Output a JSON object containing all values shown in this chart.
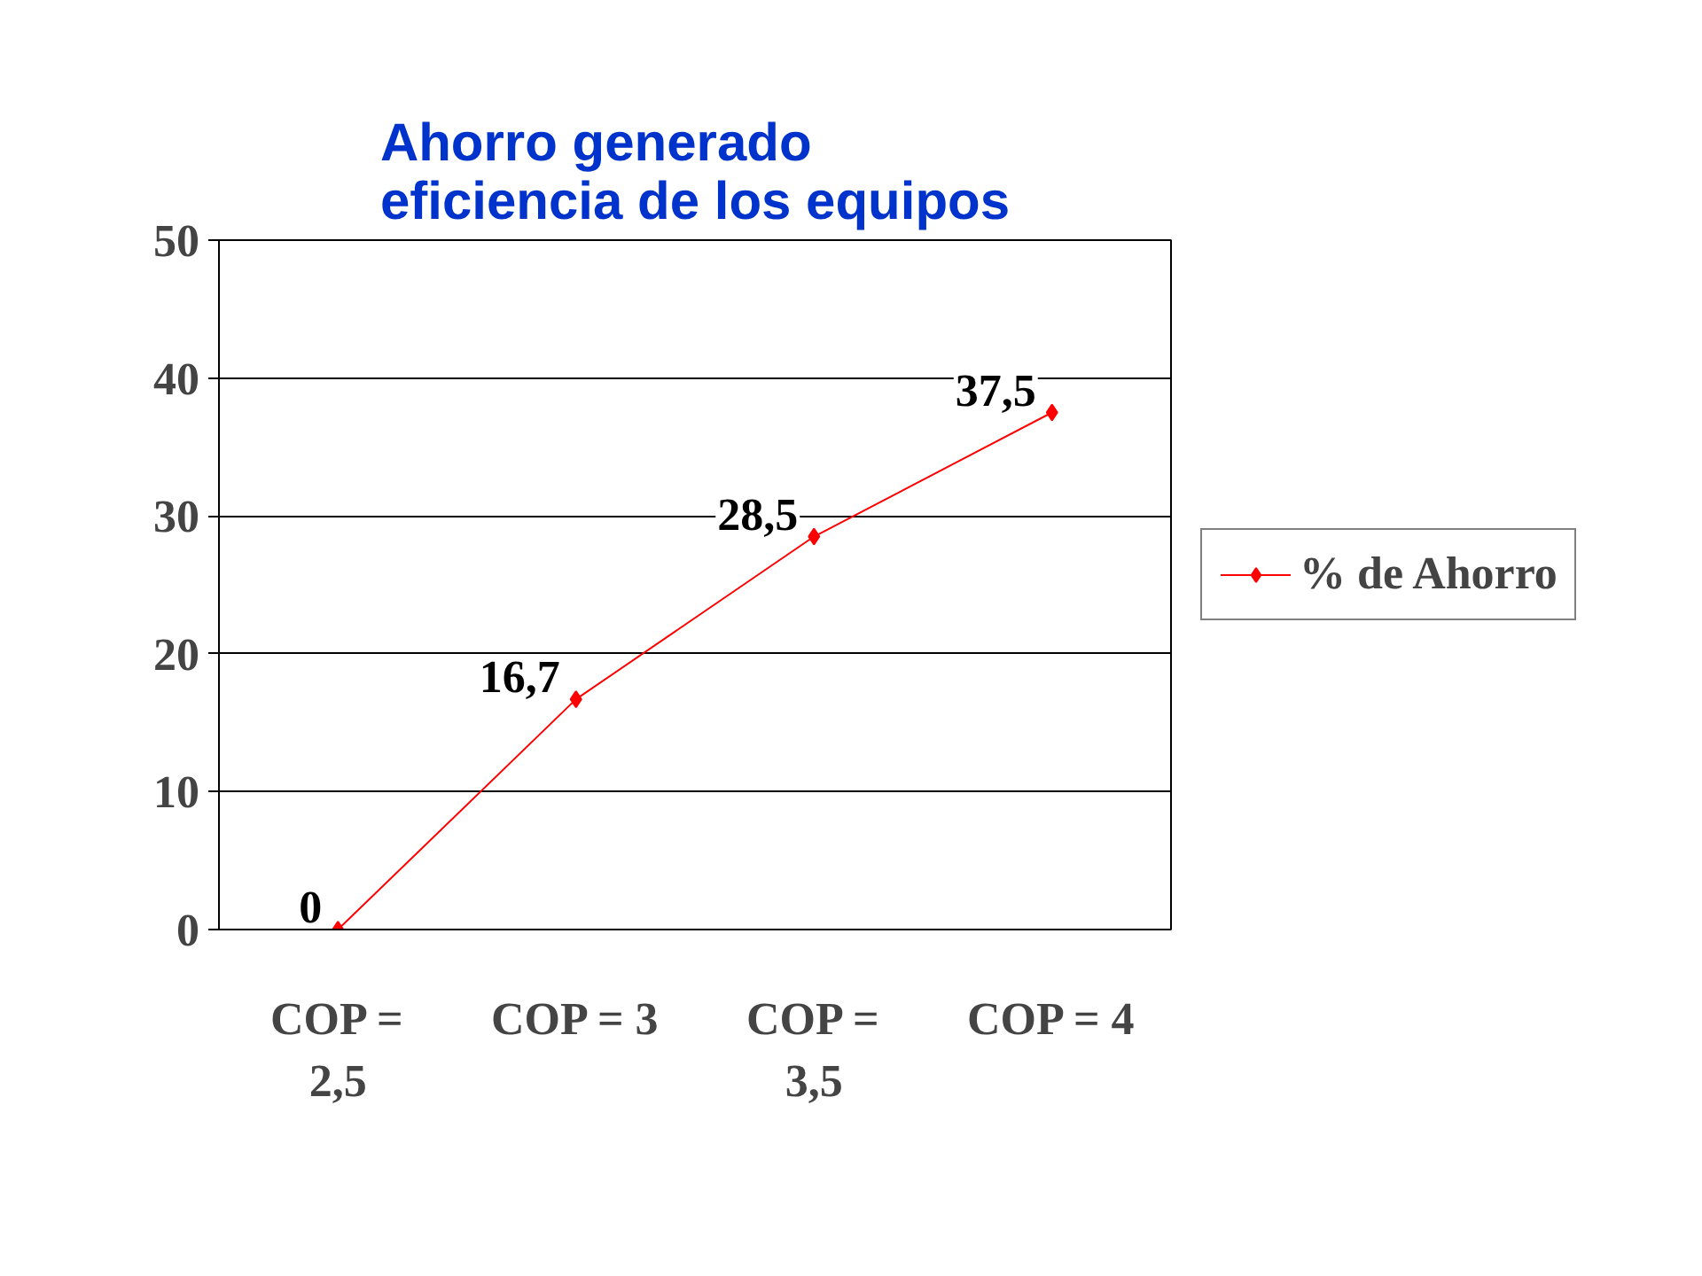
{
  "chart_data": {
    "type": "line",
    "title": "Ahorro generado\neficiencia de los equipos",
    "categories": [
      "COP = 2,5",
      "COP = 3",
      "COP = 3,5",
      "COP = 4"
    ],
    "series": [
      {
        "name": "% de Ahorro",
        "color": "#ff0000",
        "values": [
          0,
          16.7,
          28.5,
          37.5
        ],
        "value_labels": [
          "0",
          "16,7",
          "28,5",
          "37,5"
        ]
      }
    ],
    "ylim": [
      0,
      50
    ],
    "yticks": [
      0,
      10,
      20,
      30,
      40,
      50
    ],
    "grid": "y",
    "legend": "right",
    "marker": "diamond",
    "line_style": "solid"
  }
}
